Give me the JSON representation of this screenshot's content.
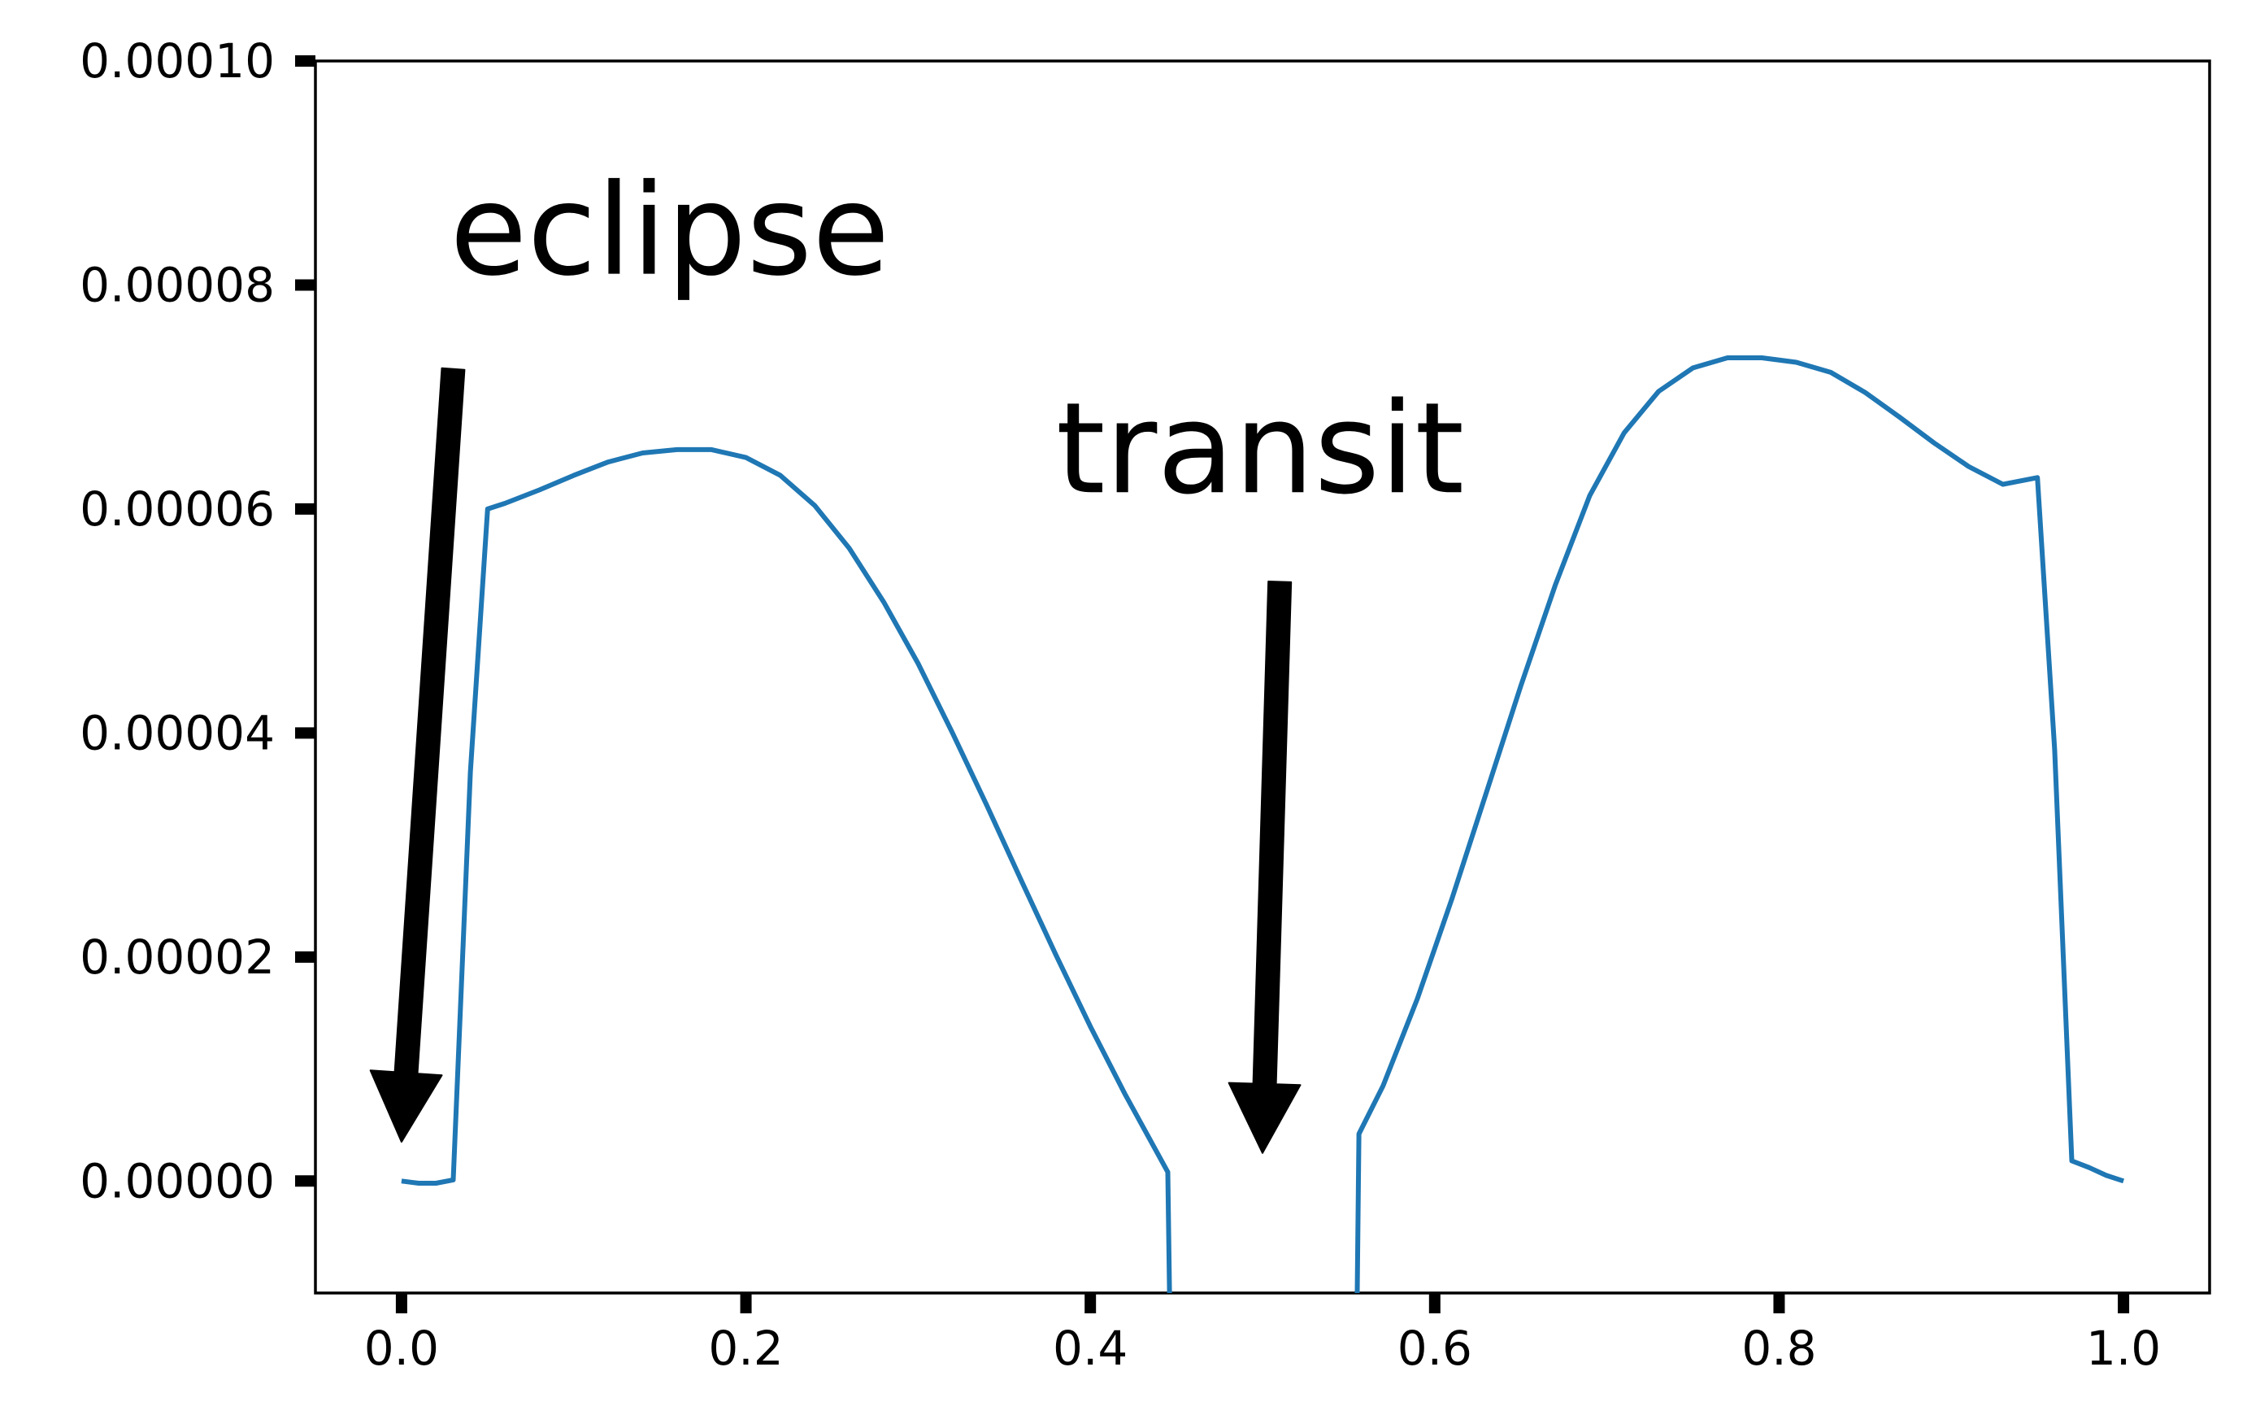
{
  "chart_data": {
    "type": "line",
    "title": "",
    "xlabel": "",
    "ylabel": "",
    "xlim": [
      -0.05,
      1.05
    ],
    "ylim": [
      -1e-05,
      0.0001
    ],
    "grid": false,
    "x_ticks": [
      0.0,
      0.2,
      0.4,
      0.6,
      0.8,
      1.0
    ],
    "x_tick_labels": [
      "0.0",
      "0.2",
      "0.4",
      "0.6",
      "0.8",
      "1.0"
    ],
    "y_ticks": [
      0.0,
      2e-05,
      4e-05,
      6e-05,
      8e-05,
      0.0001
    ],
    "y_tick_labels": [
      "0.00000",
      "0.00002",
      "0.00004",
      "0.00006",
      "0.00008",
      "0.00010"
    ],
    "series": [
      {
        "color": "#1f77b4",
        "points": [
          [
            0.0,
            0.0
          ],
          [
            0.01,
            -2e-07
          ],
          [
            0.02,
            -2e-07
          ],
          [
            0.03,
            1e-07
          ],
          [
            0.04,
            3.65e-05
          ],
          [
            0.05,
            6e-05
          ],
          [
            0.06,
            6.05e-05
          ],
          [
            0.08,
            6.17e-05
          ],
          [
            0.1,
            6.3e-05
          ],
          [
            0.12,
            6.42e-05
          ],
          [
            0.14,
            6.5e-05
          ],
          [
            0.16,
            6.53e-05
          ],
          [
            0.18,
            6.53e-05
          ],
          [
            0.2,
            6.46e-05
          ],
          [
            0.22,
            6.3e-05
          ],
          [
            0.24,
            6.03e-05
          ],
          [
            0.26,
            5.65e-05
          ],
          [
            0.28,
            5.17e-05
          ],
          [
            0.3,
            4.62e-05
          ],
          [
            0.32,
            4e-05
          ],
          [
            0.34,
            3.35e-05
          ],
          [
            0.36,
            2.68e-05
          ],
          [
            0.38,
            2.02e-05
          ],
          [
            0.4,
            1.38e-05
          ],
          [
            0.42,
            7.8e-06
          ],
          [
            0.445,
            8e-07
          ],
          [
            0.446,
            -1e-05
          ]
        ]
      },
      {
        "color": "#1f77b4",
        "points": [
          [
            0.555,
            -1e-05
          ],
          [
            0.556,
            4.2e-06
          ],
          [
            0.57,
            8.5e-06
          ],
          [
            0.59,
            1.63e-05
          ],
          [
            0.61,
            2.52e-05
          ],
          [
            0.63,
            3.47e-05
          ],
          [
            0.65,
            4.42e-05
          ],
          [
            0.67,
            5.32e-05
          ],
          [
            0.69,
            6.12e-05
          ],
          [
            0.71,
            6.68e-05
          ],
          [
            0.73,
            7.05e-05
          ],
          [
            0.75,
            7.26e-05
          ],
          [
            0.77,
            7.35e-05
          ],
          [
            0.79,
            7.35e-05
          ],
          [
            0.81,
            7.31e-05
          ],
          [
            0.83,
            7.22e-05
          ],
          [
            0.85,
            7.04e-05
          ],
          [
            0.87,
            6.82e-05
          ],
          [
            0.89,
            6.59e-05
          ],
          [
            0.91,
            6.38e-05
          ],
          [
            0.93,
            6.22e-05
          ],
          [
            0.95,
            6.28e-05
          ],
          [
            0.96,
            3.85e-05
          ],
          [
            0.97,
            1.8e-06
          ],
          [
            0.98,
            1.2e-06
          ],
          [
            0.99,
            5e-07
          ],
          [
            1.0,
            0.0
          ]
        ]
      }
    ],
    "annotations": [
      {
        "text": "eclipse",
        "text_xy": [
          0.028,
          8.1e-05
        ],
        "arrow_from": [
          0.03,
          7.25e-05
        ],
        "arrow_to": [
          0.0,
          3.5e-06
        ]
      },
      {
        "text": "transit",
        "text_xy": [
          0.38,
          6.15e-05
        ],
        "arrow_from": [
          0.51,
          5.35e-05
        ],
        "arrow_to": [
          0.5,
          2.5e-06
        ]
      }
    ]
  }
}
